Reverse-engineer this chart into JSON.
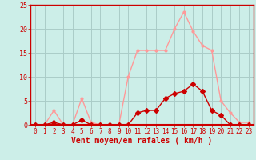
{
  "x": [
    0,
    1,
    2,
    3,
    4,
    5,
    6,
    7,
    8,
    9,
    10,
    11,
    12,
    13,
    14,
    15,
    16,
    17,
    18,
    19,
    20,
    21,
    22,
    23
  ],
  "wind_mean": [
    0,
    0,
    0.5,
    0,
    0,
    1,
    0,
    0,
    0,
    0,
    0,
    2.5,
    3,
    3,
    5.5,
    6.5,
    7,
    8.5,
    7,
    3,
    2,
    0,
    0,
    0
  ],
  "wind_gust": [
    0,
    0,
    3,
    0,
    0,
    5.5,
    0.5,
    0,
    0,
    0,
    10,
    15.5,
    15.5,
    15.5,
    15.5,
    20,
    23.5,
    19.5,
    16.5,
    15.5,
    5,
    2.5,
    0.5,
    0.5
  ],
  "xlabel": "Vent moyen/en rafales ( km/h )",
  "ylim": [
    0,
    25
  ],
  "xlim": [
    -0.5,
    23.5
  ],
  "yticks": [
    0,
    5,
    10,
    15,
    20,
    25
  ],
  "xticks": [
    0,
    1,
    2,
    3,
    4,
    5,
    6,
    7,
    8,
    9,
    10,
    11,
    12,
    13,
    14,
    15,
    16,
    17,
    18,
    19,
    20,
    21,
    22,
    23
  ],
  "bg_color": "#cceee8",
  "grid_color": "#aaccc8",
  "line_mean_color": "#cc0000",
  "line_gust_color": "#ff9999",
  "xlabel_color": "#cc0000",
  "tick_color": "#cc0000",
  "spine_color": "#cc0000",
  "linewidth": 1.0,
  "markersize_mean": 3,
  "markersize_gust": 2,
  "xlabel_fontsize": 7,
  "xtick_fontsize": 5.5,
  "ytick_fontsize": 6
}
